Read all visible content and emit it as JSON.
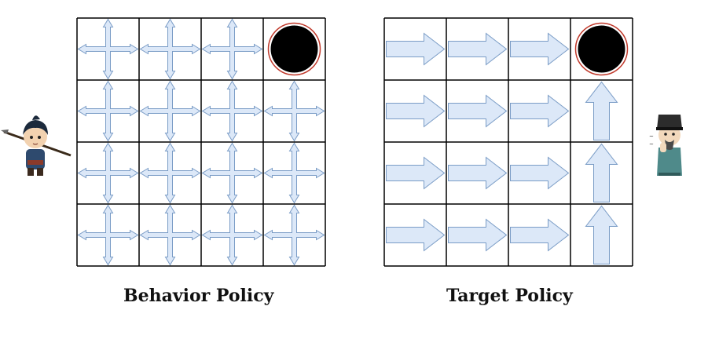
{
  "captions": {
    "behavior": "Behavior Policy",
    "target": "Target Policy"
  },
  "colors": {
    "arrow_fill": "#dce8f8",
    "arrow_stroke": "#7a9cc6",
    "grid_line": "#000000",
    "goal_fill": "#000000",
    "goal_ring": "#c0392b"
  },
  "grids": {
    "behavior": {
      "rows": 4,
      "cols": 4,
      "goal": [
        0,
        3
      ],
      "cells": [
        [
          "all",
          "all",
          "all",
          "goal"
        ],
        [
          "all",
          "all",
          "all",
          "all"
        ],
        [
          "all",
          "all",
          "all",
          "all"
        ],
        [
          "all",
          "all",
          "all",
          "all"
        ]
      ]
    },
    "target": {
      "rows": 4,
      "cols": 4,
      "goal": [
        0,
        3
      ],
      "cells": [
        [
          "right",
          "right",
          "right",
          "goal"
        ],
        [
          "right",
          "right",
          "right",
          "up"
        ],
        [
          "right",
          "right",
          "right",
          "up"
        ],
        [
          "right",
          "right",
          "right",
          "up"
        ]
      ]
    }
  },
  "characters": {
    "left": "warrior-icon",
    "right": "scholar-icon"
  }
}
